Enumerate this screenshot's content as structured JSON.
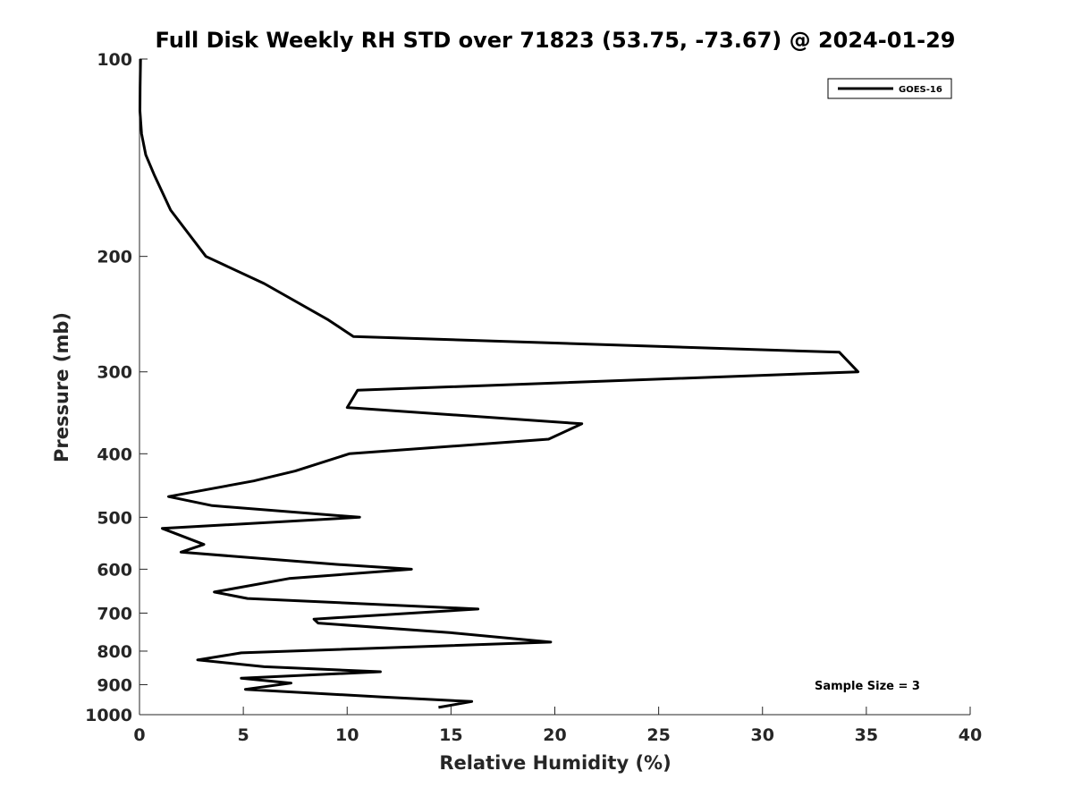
{
  "chart_data": {
    "type": "line",
    "title": "Full Disk Weekly RH STD over 71823 (53.75, -73.67) @ 2024-01-29",
    "xlabel": "Relative Humidity (%)",
    "ylabel": "Pressure (mb)",
    "xlim": [
      0,
      40
    ],
    "ylim": [
      100,
      1000
    ],
    "yscale": "log",
    "y_reversed": true,
    "x_ticks": [
      "0",
      "5",
      "10",
      "15",
      "20",
      "25",
      "30",
      "35",
      "40"
    ],
    "y_ticks": [
      "100",
      "200",
      "300",
      "400",
      "500",
      "600",
      "700",
      "800",
      "900",
      "1000"
    ],
    "grid": false,
    "legend": {
      "position": "top-right",
      "entries": [
        "GOES-16"
      ]
    },
    "annotation": "Sample Size = 3",
    "series": [
      {
        "name": "GOES-16",
        "color": "#000000",
        "points": [
          [
            0.05,
            100
          ],
          [
            0.03,
            110
          ],
          [
            0.02,
            120
          ],
          [
            0.1,
            130
          ],
          [
            0.3,
            140
          ],
          [
            0.7,
            150
          ],
          [
            1.5,
            170
          ],
          [
            3.2,
            200
          ],
          [
            6.0,
            220
          ],
          [
            9.1,
            250
          ],
          [
            10.3,
            265
          ],
          [
            33.7,
            280
          ],
          [
            34.6,
            300
          ],
          [
            10.5,
            320
          ],
          [
            10.0,
            340
          ],
          [
            21.3,
            360
          ],
          [
            19.7,
            380
          ],
          [
            10.1,
            400
          ],
          [
            7.5,
            425
          ],
          [
            5.5,
            440
          ],
          [
            1.4,
            465
          ],
          [
            3.5,
            480
          ],
          [
            10.6,
            500
          ],
          [
            1.1,
            520
          ],
          [
            3.1,
            550
          ],
          [
            2.0,
            565
          ],
          [
            9.5,
            590
          ],
          [
            13.1,
            600
          ],
          [
            7.2,
            620
          ],
          [
            3.6,
            650
          ],
          [
            5.2,
            665
          ],
          [
            16.3,
            690
          ],
          [
            8.4,
            715
          ],
          [
            8.6,
            725
          ],
          [
            15.0,
            750
          ],
          [
            19.8,
            775
          ],
          [
            4.9,
            805
          ],
          [
            2.8,
            825
          ],
          [
            6.0,
            845
          ],
          [
            11.6,
            860
          ],
          [
            4.9,
            880
          ],
          [
            7.3,
            895
          ],
          [
            5.1,
            915
          ],
          [
            11.7,
            940
          ],
          [
            16.0,
            955
          ],
          [
            14.4,
            975
          ]
        ]
      }
    ]
  }
}
